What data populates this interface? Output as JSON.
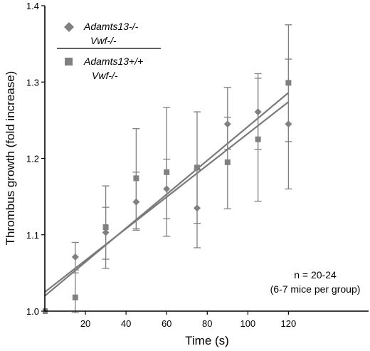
{
  "chart_data": {
    "type": "scatter",
    "xlabel": "Time (s)",
    "ylabel": "Thrombus growth (fold increase)",
    "xlim": [
      0,
      150
    ],
    "ylim": [
      1.0,
      1.4
    ],
    "x_ticks": [
      20,
      40,
      60,
      80,
      100,
      120
    ],
    "y_ticks": [
      1.0,
      1.1,
      1.2,
      1.3,
      1.4
    ],
    "x_tick_labels": [
      "20",
      "40",
      "60",
      "80",
      "100",
      "120"
    ],
    "y_tick_labels": [
      "1.0",
      "1.1",
      "1.2",
      "1.3",
      "1.4"
    ],
    "legend_position": "top-left",
    "annotation": [
      "n = 20-24",
      "(6-7 mice per group)"
    ],
    "series": [
      {
        "name": "Adamts13-/- Vwf-/-",
        "marker": "diamond",
        "color": "#808080",
        "x": [
          15,
          30,
          45,
          60,
          75,
          90,
          105,
          120
        ],
        "y": [
          1.071,
          1.103,
          1.143,
          1.16,
          1.135,
          1.245,
          1.261,
          1.245
        ],
        "err_low": [
          1.05,
          1.068,
          1.106,
          1.121,
          1.083,
          1.212,
          1.212,
          1.222
        ],
        "err_high": [
          1.09,
          1.136,
          1.182,
          1.199,
          1.186,
          1.254,
          1.311,
          1.33
        ],
        "trend": [
          1.025,
          1.274
        ]
      },
      {
        "name": "Adamts13+/+ Vwf-/-",
        "marker": "square",
        "color": "#808080",
        "x": [
          15,
          30,
          45,
          60,
          75,
          90,
          105,
          120
        ],
        "y": [
          1.018,
          1.11,
          1.174,
          1.182,
          1.188,
          1.195,
          1.225,
          1.299
        ],
        "err_low": [
          0.998,
          1.056,
          1.108,
          1.098,
          1.115,
          1.134,
          1.144,
          1.16
        ],
        "err_high": [
          1.054,
          1.164,
          1.239,
          1.267,
          1.261,
          1.293,
          1.305,
          1.375
        ],
        "trend": [
          1.02,
          1.286
        ]
      }
    ]
  },
  "legend": {
    "series1_line1": "Adamts13-/-",
    "series1_line2": "Vwf-/-",
    "series2_line1": "Adamts13+/+",
    "series2_line2": "Vwf-/-"
  }
}
